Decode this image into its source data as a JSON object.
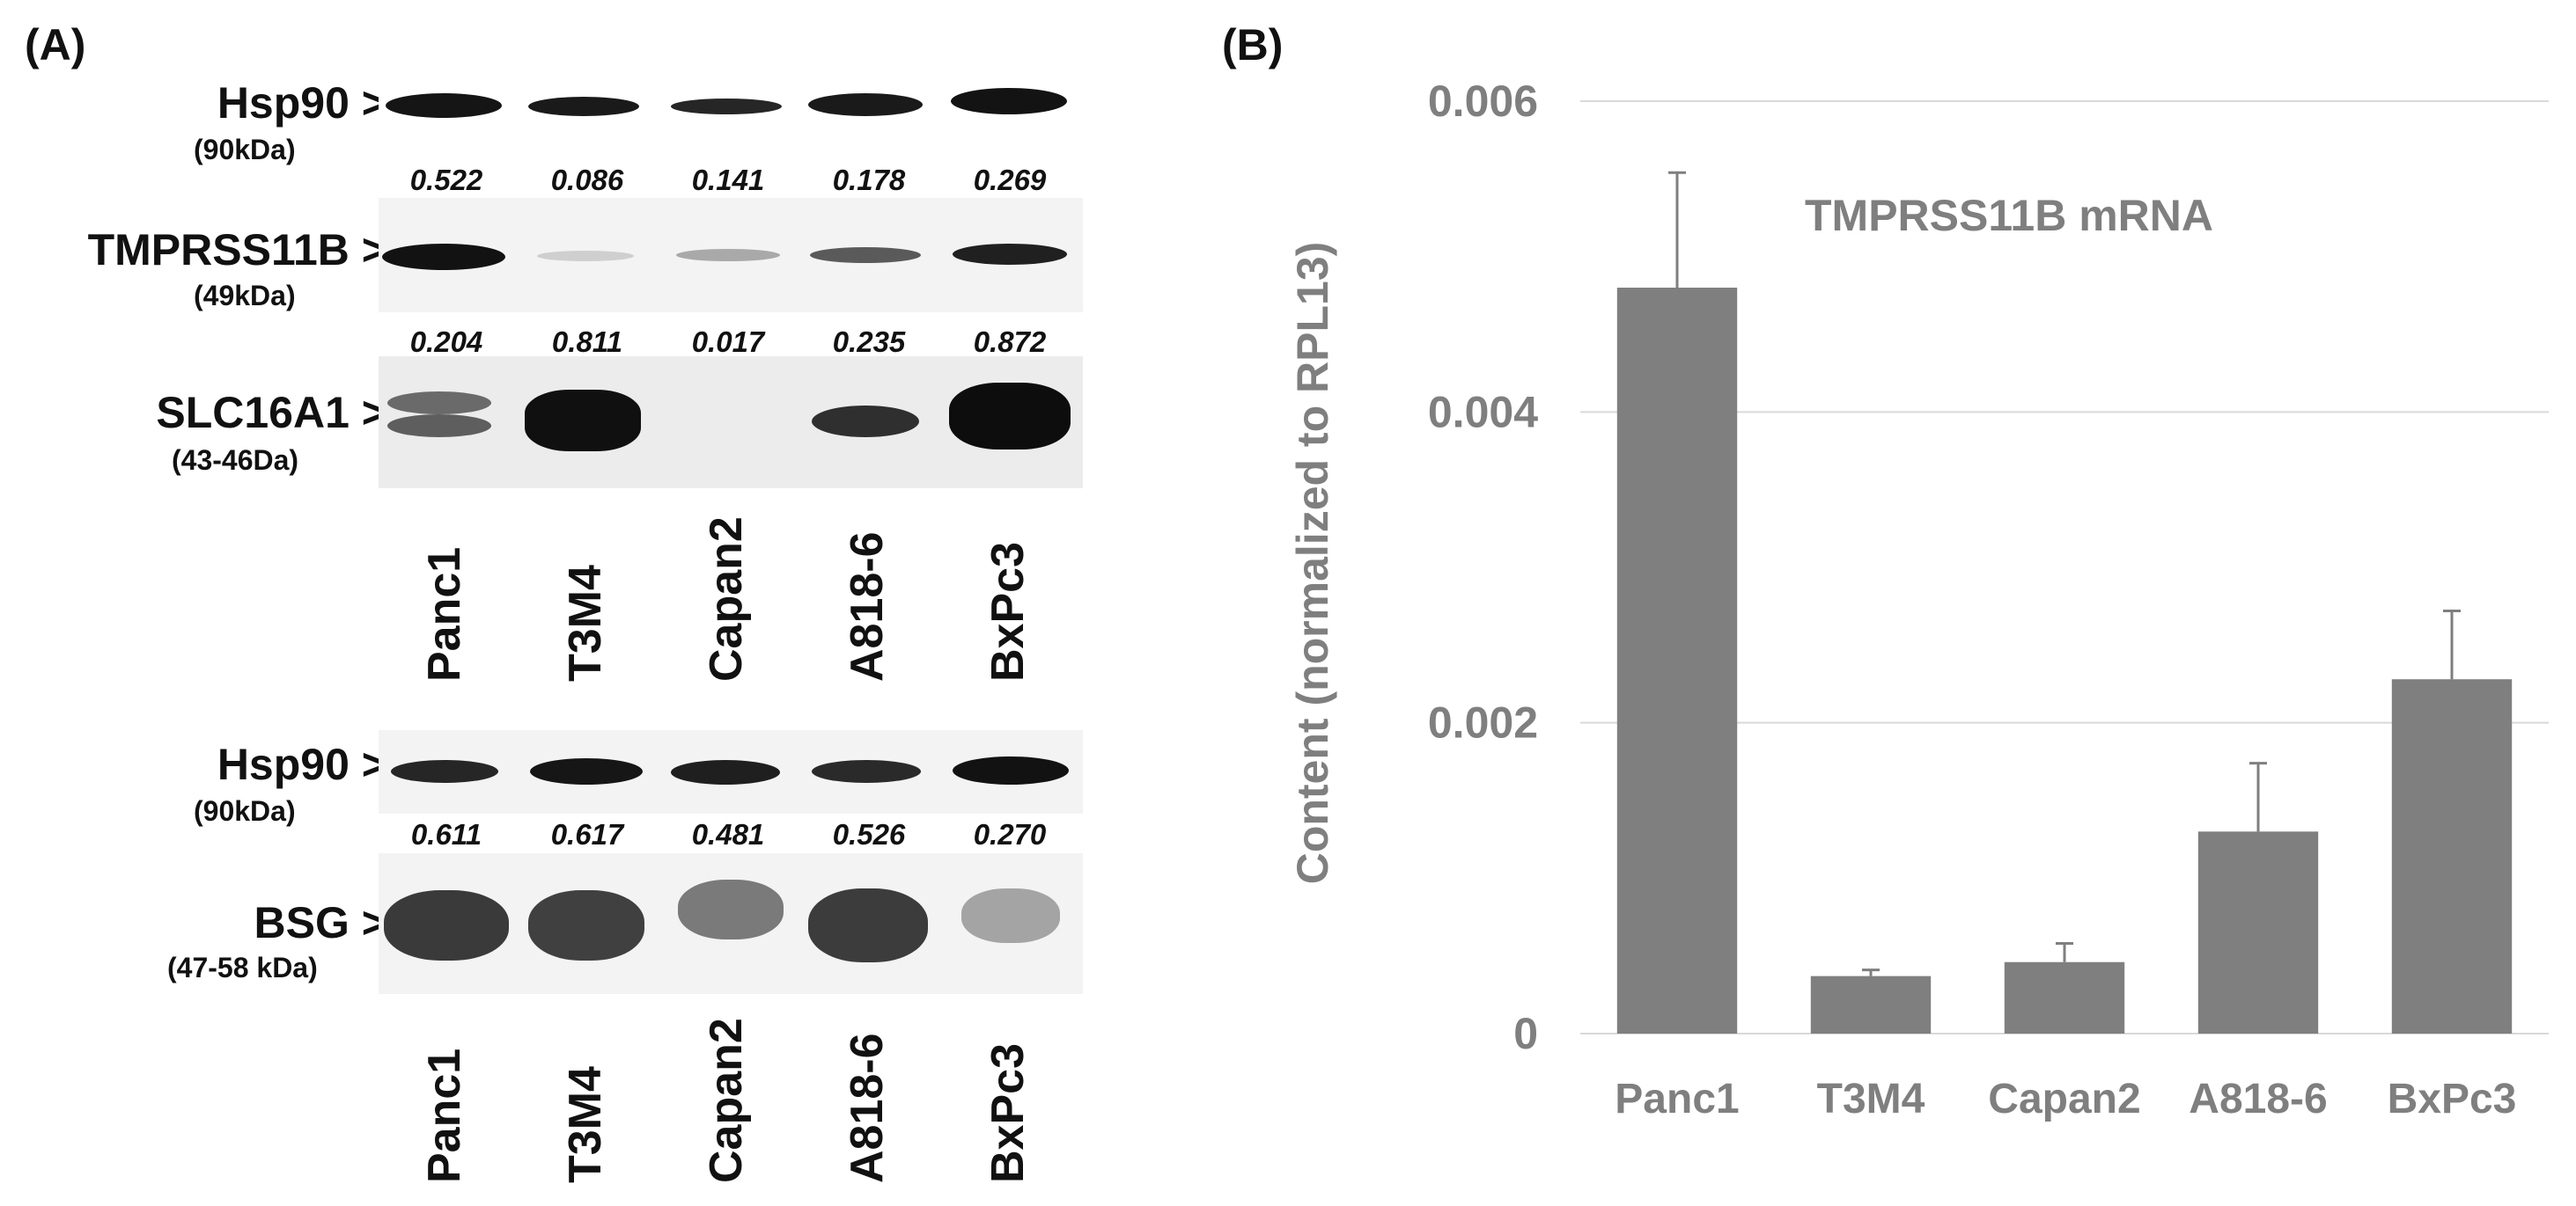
{
  "panelA": {
    "label": "(A)",
    "lanes": [
      "Panc1",
      "T3M4",
      "Capan2",
      "A818-6",
      "BxPc3"
    ],
    "blot1": {
      "hsp90": {
        "name": "Hsp90 >",
        "size": "(90kDa)"
      },
      "tmprss11b": {
        "name": "TMPRSS11B >",
        "size": "(49kDa)",
        "quant": [
          "0.522",
          "0.086",
          "0.141",
          "0.178",
          "0.269"
        ]
      },
      "slc16a1": {
        "name": "SLC16A1 >",
        "size": "(43-46Da)",
        "quant": [
          "0.204",
          "0.811",
          "0.017",
          "0.235",
          "0.872"
        ]
      }
    },
    "blot2": {
      "hsp90": {
        "name": "Hsp90 >",
        "size": "(90kDa)"
      },
      "bsg": {
        "name": "BSG >",
        "size": "(47-58 kDa)",
        "quant": [
          "0.611",
          "0.617",
          "0.481",
          "0.526",
          "0.270"
        ]
      }
    }
  },
  "panelB": {
    "label": "(B)"
  },
  "chart_data": {
    "type": "bar",
    "title": "TMPRSS11B mRNA",
    "ylabel": "Content (normalized to RPL13)",
    "xlabel": "",
    "categories": [
      "Panc1",
      "T3M4",
      "Capan2",
      "A818-6",
      "BxPc3"
    ],
    "values": [
      0.0048,
      0.00037,
      0.00046,
      0.0013,
      0.00228
    ],
    "errors": [
      0.00074,
      4e-05,
      0.00012,
      0.00044,
      0.00044
    ],
    "ylim": [
      0,
      0.006
    ],
    "yticks": [
      0,
      0.002,
      0.004,
      0.006
    ],
    "ytick_labels": [
      "0",
      "0.002",
      "0.004",
      "0.006"
    ],
    "grid": true,
    "bar_color": "#7f7f7f",
    "text_color": "#7f7f7f",
    "grid_color": "#d9d9d9"
  }
}
